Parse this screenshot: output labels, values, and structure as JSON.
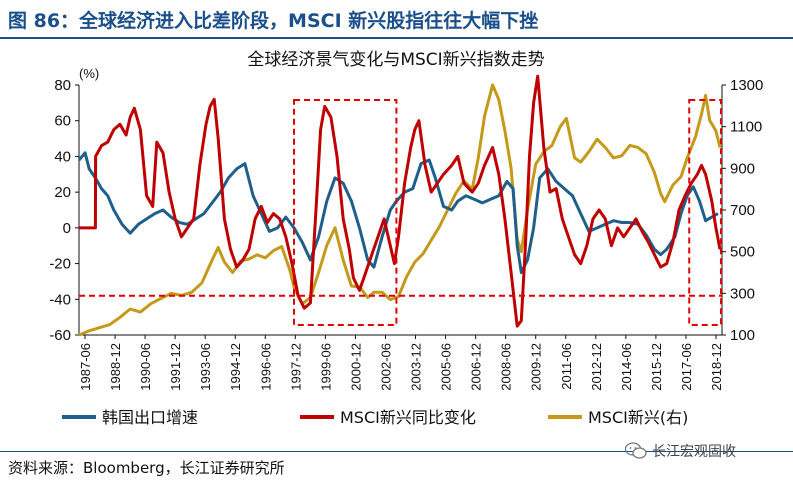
{
  "figure_title": "图 86：全球经济进入比差阶段，MSCI 新兴股指往往大幅下挫",
  "source": "资料来源：Bloomberg，长江证券研究所",
  "watermark": "长江宏观固收",
  "colors": {
    "korea_exports": "#1f5f8b",
    "msci_yoy": "#c00000",
    "msci_index": "#c59a1a",
    "highlight": "#e00000",
    "title": "#1a4f8b"
  },
  "chart_data": {
    "type": "line",
    "title": "全球经济景气变化与MSCI新兴指数走势",
    "y_left_label": "(%)",
    "y_left_ticks": [
      80,
      60,
      40,
      20,
      0,
      -20,
      -40,
      -60
    ],
    "y_left_range": [
      -60,
      80
    ],
    "y_right_ticks": [
      1300,
      1100,
      900,
      700,
      500,
      300,
      100
    ],
    "y_right_range": [
      100,
      1300
    ],
    "x_range": [
      1987.5,
      2018.9
    ],
    "x_tick_labels": [
      "1987-06",
      "1988-12",
      "1990-06",
      "1991-12",
      "1993-06",
      "1994-12",
      "1996-06",
      "1997-12",
      "1999-06",
      "2000-12",
      "2002-06",
      "2003-12",
      "2005-06",
      "2006-12",
      "2008-06",
      "2009-12",
      "2011-06",
      "2012-12",
      "2014-06",
      "2015-12",
      "2017-06",
      "2018-12"
    ],
    "grid": false,
    "legend_position": "bottom",
    "series": [
      {
        "name": "韩国出口增速",
        "axis": "left",
        "points": [
          [
            1987.5,
            38
          ],
          [
            1987.8,
            42
          ],
          [
            1988.0,
            33
          ],
          [
            1988.3,
            28
          ],
          [
            1988.6,
            22
          ],
          [
            1988.9,
            18
          ],
          [
            1989.2,
            10
          ],
          [
            1989.6,
            2
          ],
          [
            1990.0,
            -3
          ],
          [
            1990.4,
            2
          ],
          [
            1990.8,
            5
          ],
          [
            1991.2,
            8
          ],
          [
            1991.6,
            10
          ],
          [
            1992.0,
            6
          ],
          [
            1992.4,
            3
          ],
          [
            1992.8,
            2
          ],
          [
            1993.2,
            5
          ],
          [
            1993.6,
            8
          ],
          [
            1994.0,
            14
          ],
          [
            1994.4,
            20
          ],
          [
            1994.8,
            28
          ],
          [
            1995.2,
            33
          ],
          [
            1995.6,
            36
          ],
          [
            1996.0,
            18
          ],
          [
            1996.4,
            8
          ],
          [
            1996.8,
            -2
          ],
          [
            1997.2,
            0
          ],
          [
            1997.6,
            6
          ],
          [
            1998.0,
            0
          ],
          [
            1998.4,
            -8
          ],
          [
            1998.8,
            -18
          ],
          [
            1999.2,
            -5
          ],
          [
            1999.6,
            15
          ],
          [
            2000.0,
            28
          ],
          [
            2000.4,
            25
          ],
          [
            2000.8,
            15
          ],
          [
            2001.2,
            0
          ],
          [
            2001.6,
            -18
          ],
          [
            2001.9,
            -22
          ],
          [
            2002.3,
            -5
          ],
          [
            2002.7,
            10
          ],
          [
            2003.0,
            15
          ],
          [
            2003.4,
            20
          ],
          [
            2003.8,
            22
          ],
          [
            2004.2,
            36
          ],
          [
            2004.6,
            38
          ],
          [
            2004.9,
            28
          ],
          [
            2005.3,
            12
          ],
          [
            2005.7,
            10
          ],
          [
            2006.0,
            15
          ],
          [
            2006.4,
            18
          ],
          [
            2006.8,
            16
          ],
          [
            2007.2,
            14
          ],
          [
            2007.6,
            16
          ],
          [
            2008.0,
            18
          ],
          [
            2008.4,
            26
          ],
          [
            2008.7,
            22
          ],
          [
            2008.9,
            -10
          ],
          [
            2009.1,
            -25
          ],
          [
            2009.4,
            -18
          ],
          [
            2009.7,
            0
          ],
          [
            2010.0,
            28
          ],
          [
            2010.4,
            33
          ],
          [
            2010.8,
            26
          ],
          [
            2011.2,
            22
          ],
          [
            2011.6,
            18
          ],
          [
            2012.0,
            8
          ],
          [
            2012.4,
            -2
          ],
          [
            2012.8,
            0
          ],
          [
            2013.2,
            2
          ],
          [
            2013.6,
            4
          ],
          [
            2014.0,
            3
          ],
          [
            2014.4,
            3
          ],
          [
            2014.8,
            2
          ],
          [
            2015.2,
            -4
          ],
          [
            2015.6,
            -12
          ],
          [
            2015.9,
            -15
          ],
          [
            2016.2,
            -12
          ],
          [
            2016.6,
            -5
          ],
          [
            2016.9,
            8
          ],
          [
            2017.2,
            18
          ],
          [
            2017.5,
            23
          ],
          [
            2017.8,
            15
          ],
          [
            2018.1,
            4
          ],
          [
            2018.4,
            6
          ],
          [
            2018.7,
            8
          ]
        ]
      },
      {
        "name": "MSCI新兴同比变化",
        "axis": "left",
        "points": [
          [
            1987.5,
            0
          ],
          [
            1988.3,
            0
          ],
          [
            1988.31,
            40
          ],
          [
            1988.6,
            46
          ],
          [
            1988.9,
            48
          ],
          [
            1989.2,
            55
          ],
          [
            1989.5,
            58
          ],
          [
            1989.8,
            52
          ],
          [
            1990.0,
            62
          ],
          [
            1990.2,
            67
          ],
          [
            1990.5,
            55
          ],
          [
            1990.8,
            18
          ],
          [
            1991.1,
            12
          ],
          [
            1991.3,
            48
          ],
          [
            1991.6,
            42
          ],
          [
            1991.9,
            20
          ],
          [
            1992.2,
            5
          ],
          [
            1992.5,
            -5
          ],
          [
            1992.8,
            0
          ],
          [
            1993.1,
            5
          ],
          [
            1993.4,
            35
          ],
          [
            1993.7,
            58
          ],
          [
            1993.9,
            68
          ],
          [
            1994.1,
            72
          ],
          [
            1994.3,
            50
          ],
          [
            1994.6,
            5
          ],
          [
            1994.9,
            -12
          ],
          [
            1995.2,
            -22
          ],
          [
            1995.5,
            -18
          ],
          [
            1995.8,
            -12
          ],
          [
            1996.1,
            5
          ],
          [
            1996.4,
            12
          ],
          [
            1996.7,
            3
          ],
          [
            1997.0,
            8
          ],
          [
            1997.3,
            5
          ],
          [
            1997.6,
            -5
          ],
          [
            1997.9,
            -20
          ],
          [
            1998.2,
            -38
          ],
          [
            1998.5,
            -45
          ],
          [
            1998.8,
            -42
          ],
          [
            1999.1,
            15
          ],
          [
            1999.3,
            55
          ],
          [
            1999.5,
            68
          ],
          [
            1999.8,
            62
          ],
          [
            2000.1,
            40
          ],
          [
            2000.4,
            5
          ],
          [
            2000.7,
            -12
          ],
          [
            2000.9,
            -28
          ],
          [
            2001.2,
            -35
          ],
          [
            2001.5,
            -25
          ],
          [
            2001.8,
            -15
          ],
          [
            2002.1,
            -5
          ],
          [
            2002.4,
            5
          ],
          [
            2002.7,
            -10
          ],
          [
            2002.9,
            -20
          ],
          [
            2003.1,
            -5
          ],
          [
            2003.4,
            25
          ],
          [
            2003.7,
            45
          ],
          [
            2003.9,
            55
          ],
          [
            2004.1,
            60
          ],
          [
            2004.4,
            35
          ],
          [
            2004.7,
            20
          ],
          [
            2005.0,
            25
          ],
          [
            2005.3,
            30
          ],
          [
            2005.7,
            35
          ],
          [
            2006.0,
            40
          ],
          [
            2006.3,
            25
          ],
          [
            2006.7,
            20
          ],
          [
            2007.0,
            25
          ],
          [
            2007.3,
            35
          ],
          [
            2007.7,
            45
          ],
          [
            2008.0,
            30
          ],
          [
            2008.3,
            5
          ],
          [
            2008.6,
            -25
          ],
          [
            2008.9,
            -55
          ],
          [
            2009.1,
            -52
          ],
          [
            2009.3,
            -10
          ],
          [
            2009.5,
            40
          ],
          [
            2009.7,
            70
          ],
          [
            2009.9,
            85
          ],
          [
            2010.2,
            45
          ],
          [
            2010.5,
            20
          ],
          [
            2010.8,
            22
          ],
          [
            2011.1,
            5
          ],
          [
            2011.4,
            -5
          ],
          [
            2011.7,
            -15
          ],
          [
            2012.0,
            -20
          ],
          [
            2012.3,
            -10
          ],
          [
            2012.6,
            5
          ],
          [
            2012.9,
            10
          ],
          [
            2013.2,
            5
          ],
          [
            2013.5,
            -10
          ],
          [
            2013.8,
            0
          ],
          [
            2014.1,
            -5
          ],
          [
            2014.4,
            0
          ],
          [
            2014.7,
            5
          ],
          [
            2015.0,
            -2
          ],
          [
            2015.3,
            -8
          ],
          [
            2015.6,
            -15
          ],
          [
            2015.9,
            -22
          ],
          [
            2016.2,
            -20
          ],
          [
            2016.5,
            -8
          ],
          [
            2016.8,
            10
          ],
          [
            2017.1,
            18
          ],
          [
            2017.4,
            25
          ],
          [
            2017.7,
            30
          ],
          [
            2017.9,
            35
          ],
          [
            2018.1,
            30
          ],
          [
            2018.4,
            15
          ],
          [
            2018.6,
            0
          ],
          [
            2018.8,
            -12
          ]
        ]
      },
      {
        "name": "MSCI新兴(右)",
        "axis": "right",
        "points": [
          [
            1987.5,
            100
          ],
          [
            1988.0,
            120
          ],
          [
            1988.5,
            135
          ],
          [
            1989.0,
            150
          ],
          [
            1989.5,
            185
          ],
          [
            1990.0,
            225
          ],
          [
            1990.5,
            210
          ],
          [
            1991.0,
            250
          ],
          [
            1991.5,
            275
          ],
          [
            1992.0,
            300
          ],
          [
            1992.5,
            290
          ],
          [
            1993.0,
            305
          ],
          [
            1993.5,
            350
          ],
          [
            1994.0,
            460
          ],
          [
            1994.3,
            520
          ],
          [
            1994.6,
            450
          ],
          [
            1995.0,
            400
          ],
          [
            1995.4,
            455
          ],
          [
            1995.8,
            465
          ],
          [
            1996.2,
            485
          ],
          [
            1996.6,
            470
          ],
          [
            1997.0,
            505
          ],
          [
            1997.4,
            525
          ],
          [
            1997.8,
            410
          ],
          [
            1998.0,
            330
          ],
          [
            1998.4,
            250
          ],
          [
            1998.8,
            280
          ],
          [
            1999.2,
            400
          ],
          [
            1999.6,
            530
          ],
          [
            2000.0,
            615
          ],
          [
            2000.4,
            460
          ],
          [
            2000.8,
            335
          ],
          [
            2001.2,
            330
          ],
          [
            2001.6,
            280
          ],
          [
            2001.9,
            305
          ],
          [
            2002.3,
            305
          ],
          [
            2002.7,
            270
          ],
          [
            2003.1,
            285
          ],
          [
            2003.5,
            380
          ],
          [
            2003.9,
            450
          ],
          [
            2004.3,
            490
          ],
          [
            2004.7,
            555
          ],
          [
            2005.1,
            620
          ],
          [
            2005.5,
            700
          ],
          [
            2005.9,
            780
          ],
          [
            2006.3,
            840
          ],
          [
            2006.7,
            800
          ],
          [
            2007.0,
            950
          ],
          [
            2007.3,
            1150
          ],
          [
            2007.7,
            1300
          ],
          [
            2008.0,
            1230
          ],
          [
            2008.3,
            1080
          ],
          [
            2008.6,
            900
          ],
          [
            2008.9,
            560
          ],
          [
            2009.1,
            500
          ],
          [
            2009.4,
            700
          ],
          [
            2009.8,
            920
          ],
          [
            2010.2,
            980
          ],
          [
            2010.6,
            1010
          ],
          [
            2011.0,
            1100
          ],
          [
            2011.3,
            1140
          ],
          [
            2011.7,
            950
          ],
          [
            2012.0,
            930
          ],
          [
            2012.4,
            980
          ],
          [
            2012.8,
            1040
          ],
          [
            2013.2,
            1000
          ],
          [
            2013.6,
            950
          ],
          [
            2014.0,
            960
          ],
          [
            2014.4,
            1010
          ],
          [
            2014.8,
            1000
          ],
          [
            2015.2,
            970
          ],
          [
            2015.6,
            880
          ],
          [
            2015.9,
            780
          ],
          [
            2016.1,
            740
          ],
          [
            2016.5,
            820
          ],
          [
            2016.9,
            860
          ],
          [
            2017.2,
            950
          ],
          [
            2017.6,
            1050
          ],
          [
            2017.9,
            1160
          ],
          [
            2018.1,
            1250
          ],
          [
            2018.3,
            1130
          ],
          [
            2018.6,
            1080
          ],
          [
            2018.8,
            1000
          ]
        ]
      }
    ],
    "reference_line": {
      "axis": "left",
      "value": -38
    },
    "highlight_periods": [
      [
        1998.0,
        2003.0
      ],
      [
        2017.3,
        2018.85
      ]
    ]
  }
}
